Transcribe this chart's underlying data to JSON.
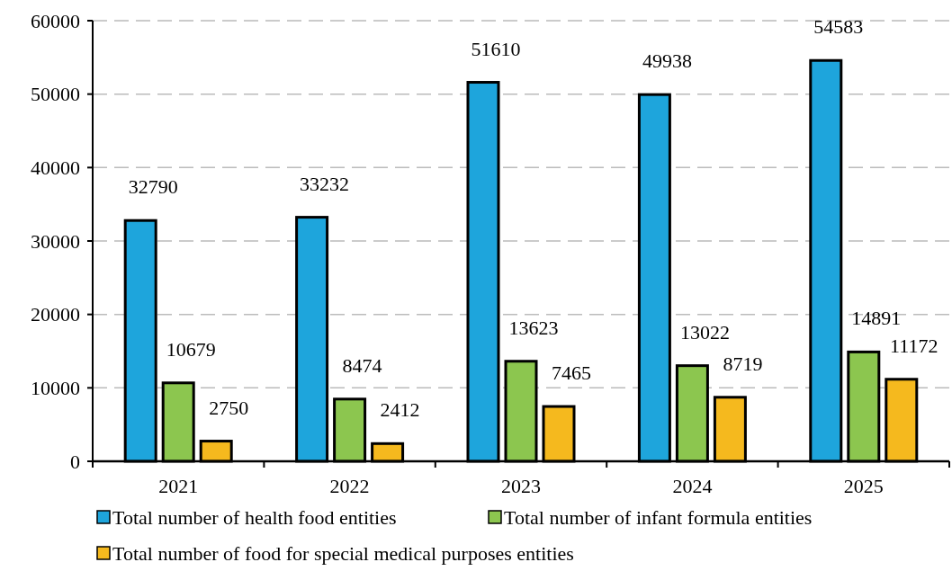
{
  "chart_data": {
    "type": "bar",
    "categories": [
      "2021",
      "2022",
      "2023",
      "2024",
      "2025"
    ],
    "series": [
      {
        "name": "Total number of health food entities",
        "color": "#1ea5dc",
        "values": [
          32790,
          33232,
          51610,
          49938,
          54583
        ]
      },
      {
        "name": "Total number of infant formula entities",
        "color": "#8cc64f",
        "values": [
          10679,
          8474,
          13623,
          13022,
          14891
        ]
      },
      {
        "name": "Total number of food for special medical purposes entities",
        "color": "#f5b91e",
        "values": [
          2750,
          2412,
          7465,
          8719,
          11172
        ]
      }
    ],
    "ylim": [
      0,
      60000
    ],
    "yticks": [
      0,
      10000,
      20000,
      30000,
      40000,
      50000,
      60000
    ],
    "grid": "y",
    "legend": "bottom",
    "data_labels": true
  }
}
